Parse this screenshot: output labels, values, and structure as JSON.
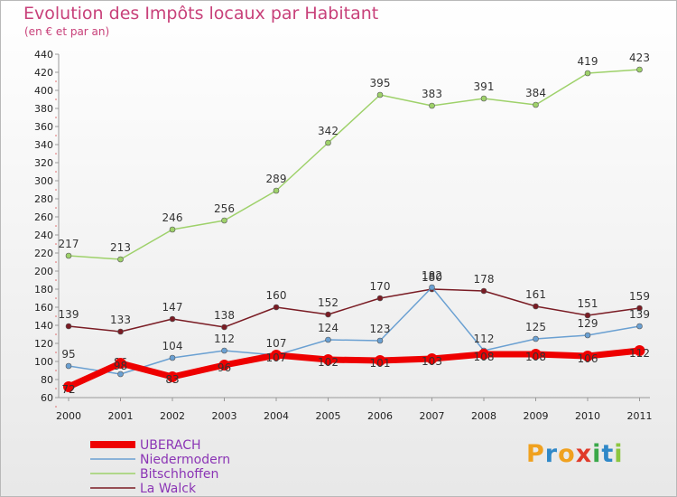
{
  "header": {
    "title": "Evolution des Impôts locaux par Habitant",
    "subtitle": "(en € et par an)"
  },
  "logo": {
    "letters": [
      "P",
      "r",
      "o",
      "x",
      "i",
      "t",
      "i"
    ],
    "colors": [
      "#f0a11f",
      "#2f88c8",
      "#f0a11f",
      "#e03a2a",
      "#3aa84a",
      "#2f88c8",
      "#8cc63f"
    ]
  },
  "chart_data": {
    "type": "line",
    "x": [
      "2000",
      "2001",
      "2002",
      "2003",
      "2004",
      "2005",
      "2006",
      "2007",
      "2008",
      "2009",
      "2010",
      "2011"
    ],
    "ylim": [
      60,
      440
    ],
    "yticks": [
      60,
      80,
      100,
      120,
      140,
      160,
      180,
      200,
      220,
      240,
      260,
      280,
      300,
      320,
      340,
      360,
      380,
      400,
      420,
      440
    ],
    "grid": false,
    "legend_position": "bottom-left",
    "series": [
      {
        "name": "La Walck",
        "color": "#7a1c24",
        "values": [
          139,
          133,
          147,
          138,
          160,
          152,
          170,
          180,
          178,
          161,
          151,
          159
        ]
      },
      {
        "name": "Bitschhoffen",
        "color": "#9ed16a",
        "values": [
          217,
          213,
          246,
          256,
          289,
          342,
          395,
          383,
          391,
          384,
          419,
          423
        ]
      },
      {
        "name": "Niedermodern",
        "color": "#6aa0d2",
        "values": [
          95,
          86,
          104,
          112,
          107,
          124,
          123,
          182,
          112,
          125,
          129,
          139
        ]
      },
      {
        "name": "UBERACH",
        "color": "#ee0000",
        "values": [
          72,
          98,
          83,
          96,
          107,
          102,
          101,
          103,
          108,
          108,
          106,
          112
        ]
      }
    ],
    "data_labels": [
      {
        "series": "La Walck",
        "labels": [
          "139",
          "133",
          "147",
          "138",
          "160",
          "152",
          "170",
          "180",
          "178",
          "161",
          "151",
          "159"
        ]
      },
      {
        "series": "Bitschhoffen",
        "labels": [
          "217",
          "213",
          "246",
          "256",
          "289",
          "342",
          "395",
          "383",
          "391",
          "384",
          "419",
          "423"
        ]
      },
      {
        "series": "Niedermodern",
        "labels": [
          "95",
          "86",
          "104",
          "112",
          "107",
          "124",
          "123",
          "182",
          "112",
          "125",
          "129",
          "139"
        ]
      },
      {
        "series": "UBERACH",
        "labels": [
          "72",
          "98",
          "83",
          "96",
          "107",
          "102",
          "101",
          "103",
          "108",
          "108",
          "106",
          "112"
        ]
      }
    ],
    "legend": [
      "UBERACH",
      "Niedermodern",
      "Bitschhoffen",
      "La Walck"
    ]
  }
}
